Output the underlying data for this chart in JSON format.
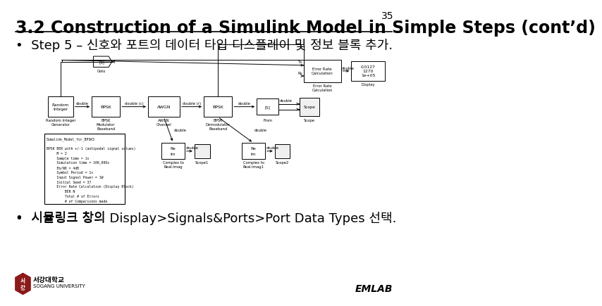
{
  "page_number": "35",
  "title": "3.2 Construction of a Simulink Model in Simple Steps (cont’d)",
  "title_fontsize": 17,
  "background_color": "#ffffff",
  "page_num_fontsize": 10,
  "bullet1": "•  Step 5 – 신호와 포트의 데이터 타입 디스플레이 및 정보 블록 추가.",
  "bullet2_part1": "•  시뮬링크 창의 ",
  "bullet2_mono": "Display>Signals&Ports>Port Data Types",
  "bullet2_part2": " 선택.",
  "emlab_text": "EMLAB",
  "university_text": "서강대학교",
  "university_sub": "SOGANG UNIVERSITY",
  "bullet_fontsize": 13,
  "small_fontsize": 4.5,
  "tiny_fontsize": 3.8
}
